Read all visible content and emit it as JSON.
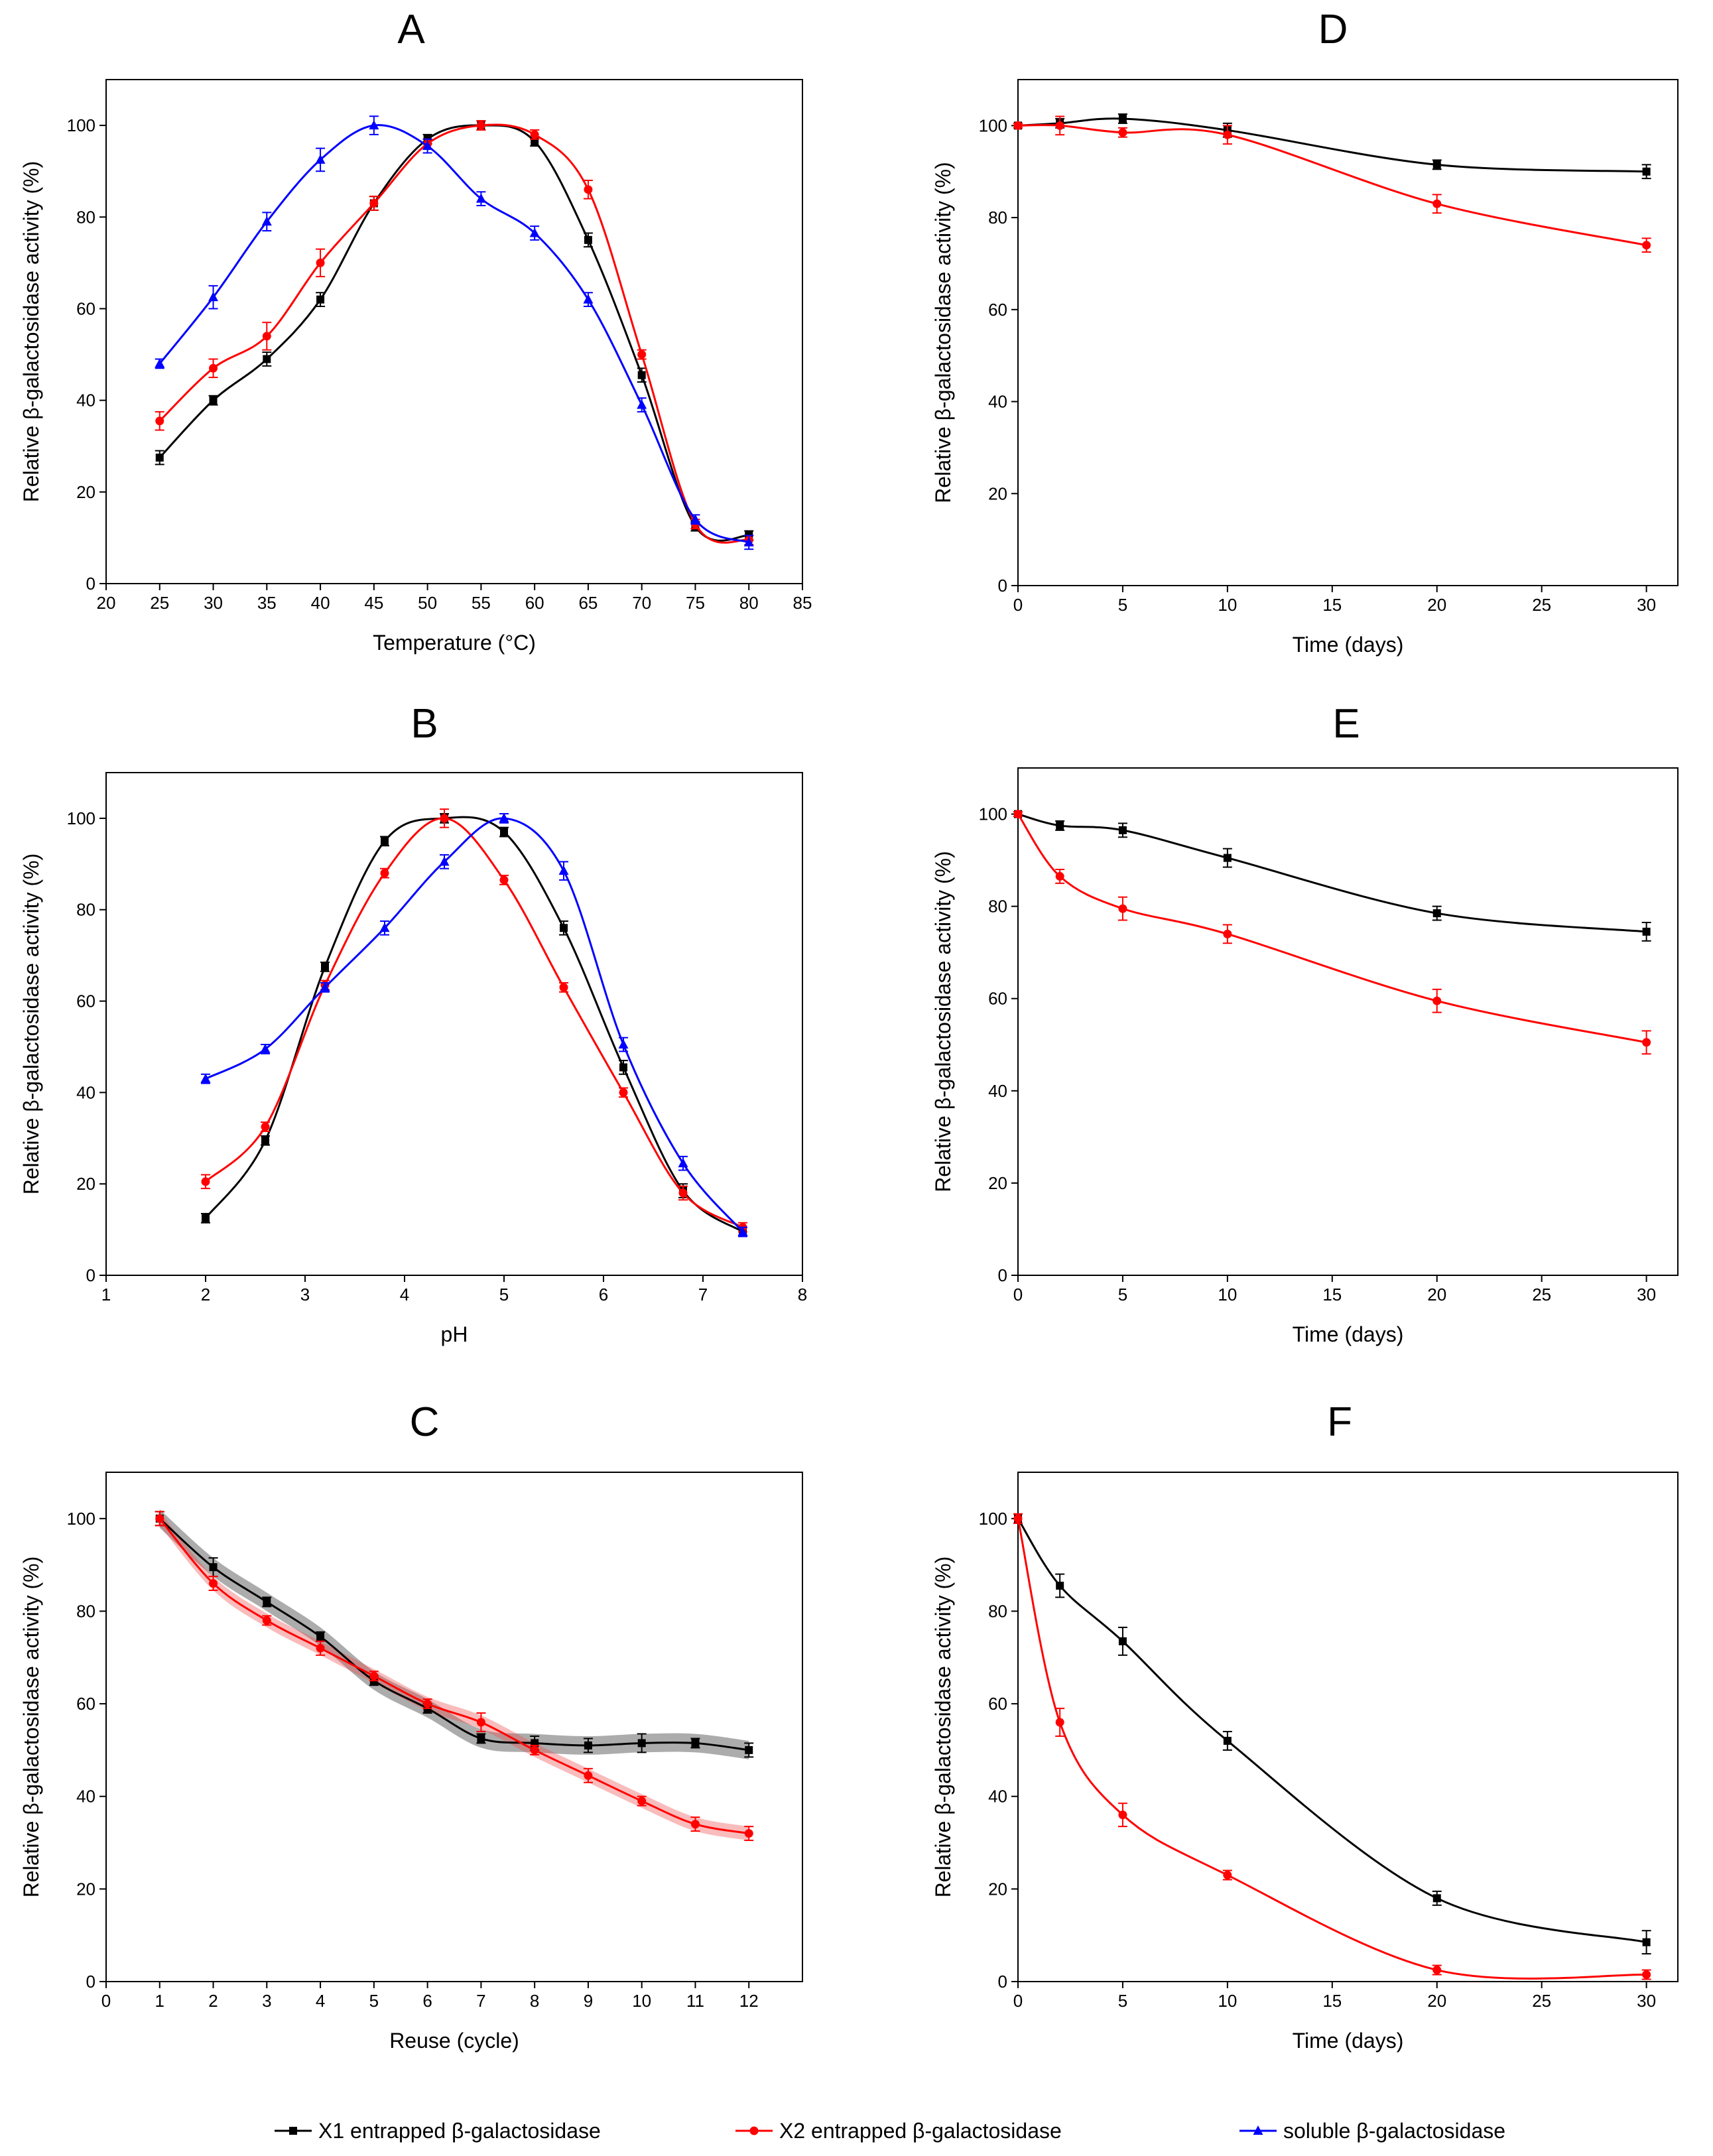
{
  "legend": [
    {
      "series": "x1",
      "label": "X1 entrapped β-galactosidase",
      "marker": "square",
      "color": "#000000"
    },
    {
      "series": "x2",
      "label": "X2 entrapped β-galactosidase",
      "marker": "circle",
      "color": "#ff0000"
    },
    {
      "series": "soluble",
      "label": "soluble β-galactosidase",
      "marker": "triangle",
      "color": "#0000ff"
    }
  ],
  "chart_data": [
    {
      "id": "A",
      "type": "line",
      "title": "A",
      "xlabel": "Temperature (°C)",
      "ylabel": "Relative β-galactosidase activity (%)",
      "xlim": [
        20,
        85
      ],
      "ylim": [
        0,
        110
      ],
      "xticks": [
        20,
        25,
        30,
        35,
        40,
        45,
        50,
        55,
        60,
        65,
        70,
        75,
        80,
        85
      ],
      "yticks": [
        0,
        20,
        40,
        60,
        80,
        100
      ],
      "series": [
        {
          "key": "x1",
          "name": "X1 entrapped β-galactosidase",
          "x": [
            25,
            30,
            35,
            40,
            45,
            50,
            55,
            60,
            65,
            70,
            75,
            80
          ],
          "y": [
            27.5,
            40,
            49,
            62,
            83,
            97,
            100,
            96.5,
            75,
            45.5,
            12.5,
            10.5
          ],
          "err": [
            1.5,
            1,
            1.5,
            1.5,
            1.5,
            1,
            1,
            1,
            1.5,
            1.5,
            1,
            1
          ]
        },
        {
          "key": "x2",
          "name": "X2 entrapped β-galactosidase",
          "x": [
            25,
            30,
            35,
            40,
            45,
            50,
            55,
            60,
            65,
            70,
            75,
            80
          ],
          "y": [
            35.5,
            47,
            54,
            70,
            83,
            96,
            100,
            98,
            86,
            50,
            13,
            9.5
          ],
          "err": [
            2,
            2,
            3,
            3,
            1.5,
            1,
            1,
            1,
            2,
            1,
            1,
            1
          ]
        },
        {
          "key": "soluble",
          "name": "soluble β-galactosidase",
          "x": [
            25,
            30,
            35,
            40,
            45,
            50,
            55,
            60,
            65,
            70,
            75,
            80
          ],
          "y": [
            48,
            62.5,
            79,
            92.5,
            100,
            95.5,
            84,
            76.5,
            62,
            39,
            14,
            9
          ],
          "err": [
            1,
            2.5,
            2,
            2.5,
            2,
            1.5,
            1.5,
            1.5,
            1.5,
            1.5,
            1,
            1.5
          ]
        }
      ]
    },
    {
      "id": "B",
      "type": "line",
      "title": "B",
      "xlabel": "pH",
      "ylabel": "Relative β-galactosidase activity (%)",
      "xlim": [
        1,
        8
      ],
      "ylim": [
        0,
        110
      ],
      "xticks": [
        1,
        2,
        3,
        4,
        5,
        6,
        7,
        8
      ],
      "yticks": [
        0,
        20,
        40,
        60,
        80,
        100
      ],
      "series": [
        {
          "key": "x1",
          "name": "X1 entrapped β-galactosidase",
          "x": [
            2,
            2.6,
            3.2,
            3.8,
            4.4,
            5.0,
            5.6,
            6.2,
            6.8,
            7.4
          ],
          "y": [
            12.5,
            29.5,
            67.5,
            95,
            100,
            97,
            76,
            45.5,
            18.5,
            9.5
          ],
          "err": [
            1,
            1,
            1,
            1,
            1,
            1,
            1.5,
            1.5,
            1.5,
            1
          ]
        },
        {
          "key": "x2",
          "name": "X2 entrapped β-galactosidase",
          "x": [
            2,
            2.6,
            3.2,
            3.8,
            4.4,
            5.0,
            5.6,
            6.2,
            6.8,
            7.4
          ],
          "y": [
            20.5,
            32.5,
            63.5,
            88,
            100,
            86.5,
            63,
            40,
            18,
            10.5
          ],
          "err": [
            1.5,
            1,
            1,
            1,
            2,
            1,
            1,
            1,
            1.5,
            1
          ]
        },
        {
          "key": "soluble",
          "name": "soluble β-galactosidase",
          "x": [
            2,
            2.6,
            3.2,
            3.8,
            4.4,
            5.0,
            5.6,
            6.2,
            6.8,
            7.4
          ],
          "y": [
            43,
            49.5,
            63,
            76,
            90.5,
            100,
            88.5,
            50.5,
            24.5,
            9.5
          ],
          "err": [
            1,
            1,
            1,
            1.5,
            1.5,
            1,
            2,
            1.5,
            1.5,
            1
          ]
        }
      ]
    },
    {
      "id": "C",
      "type": "line",
      "title": "C",
      "xlabel": "Reuse (cycle)",
      "ylabel": "Relative β-galactosidase activity (%)",
      "xlim": [
        0,
        13
      ],
      "ylim": [
        0,
        110
      ],
      "xticks": [
        0,
        1,
        2,
        3,
        4,
        5,
        6,
        7,
        8,
        9,
        10,
        11,
        12
      ],
      "yticks": [
        0,
        20,
        40,
        60,
        80,
        100
      ],
      "series": [
        {
          "key": "x1",
          "name": "X1 entrapped β-galactosidase",
          "x": [
            1,
            2,
            3,
            4,
            5,
            6,
            7,
            8,
            9,
            10,
            11,
            12
          ],
          "y": [
            100,
            89.5,
            82,
            74.5,
            65,
            59,
            52.5,
            51.5,
            51,
            51.5,
            51.5,
            50
          ],
          "err": [
            1.5,
            2,
            1,
            1,
            1,
            1,
            1,
            1.5,
            1.5,
            2,
            1,
            1.5
          ],
          "band": 2
        },
        {
          "key": "x2",
          "name": "X2 entrapped β-galactosidase",
          "x": [
            1,
            2,
            3,
            4,
            5,
            6,
            7,
            8,
            9,
            10,
            11,
            12
          ],
          "y": [
            100,
            86,
            78,
            72,
            66,
            60,
            56,
            50,
            44.5,
            39,
            34,
            32
          ],
          "err": [
            1.5,
            1.5,
            1,
            1.5,
            1,
            1,
            2,
            1,
            1.5,
            1,
            1.5,
            1.5
          ],
          "band": 1.5
        }
      ]
    },
    {
      "id": "D",
      "type": "line",
      "title": "D",
      "xlabel": "Time (days)",
      "ylabel": "Relative β-galactosidase activity (%)",
      "xlim": [
        0,
        31.5
      ],
      "ylim": [
        0,
        110
      ],
      "xticks": [
        0,
        5,
        10,
        15,
        20,
        25,
        30
      ],
      "yticks": [
        0,
        20,
        40,
        60,
        80,
        100
      ],
      "series": [
        {
          "key": "x1",
          "name": "X1 entrapped β-galactosidase",
          "x": [
            0,
            2,
            5,
            10,
            20,
            30
          ],
          "y": [
            100,
            100.5,
            101.5,
            99,
            91.5,
            90
          ],
          "err": [
            0.5,
            1,
            1,
            1.5,
            1,
            1.5
          ]
        },
        {
          "key": "x2",
          "name": "X2 entrapped β-galactosidase",
          "x": [
            0,
            2,
            5,
            10,
            20,
            30
          ],
          "y": [
            100,
            100,
            98.5,
            98,
            83,
            74
          ],
          "err": [
            0.5,
            2,
            1,
            2,
            2,
            1.5
          ]
        }
      ]
    },
    {
      "id": "E",
      "type": "line",
      "title": "E",
      "xlabel": "Time (days)",
      "ylabel": "Relative β-galactosidase activity (%)",
      "xlim": [
        0,
        31.5
      ],
      "ylim": [
        0,
        110
      ],
      "xticks": [
        0,
        5,
        10,
        15,
        20,
        25,
        30
      ],
      "yticks": [
        0,
        20,
        40,
        60,
        80,
        100
      ],
      "series": [
        {
          "key": "x1",
          "name": "X1 entrapped β-galactosidase",
          "x": [
            0,
            2,
            5,
            10,
            20,
            30
          ],
          "y": [
            100,
            97.5,
            96.5,
            90.5,
            78.5,
            74.5
          ],
          "err": [
            0.5,
            1,
            1.5,
            2,
            1.5,
            2
          ]
        },
        {
          "key": "x2",
          "name": "X2 entrapped β-galactosidase",
          "x": [
            0,
            2,
            5,
            10,
            20,
            30
          ],
          "y": [
            100,
            86.5,
            79.5,
            74,
            59.5,
            50.5
          ],
          "err": [
            0.5,
            1.5,
            2.5,
            2,
            2.5,
            2.5
          ]
        }
      ]
    },
    {
      "id": "F",
      "type": "line",
      "title": "F",
      "xlabel": "Time (days)",
      "ylabel": "Relative β-galactosidase activity (%)",
      "xlim": [
        0,
        31.5
      ],
      "ylim": [
        0,
        110
      ],
      "xticks": [
        0,
        5,
        10,
        15,
        20,
        25,
        30
      ],
      "yticks": [
        0,
        20,
        40,
        60,
        80,
        100
      ],
      "series": [
        {
          "key": "x1",
          "name": "X1 entrapped β-galactosidase",
          "x": [
            0,
            2,
            5,
            10,
            20,
            30
          ],
          "y": [
            100,
            85.5,
            73.5,
            52,
            18,
            8.5
          ],
          "err": [
            1,
            2.5,
            3,
            2,
            1.5,
            2.5
          ]
        },
        {
          "key": "x2",
          "name": "X2 entrapped β-galactosidase",
          "x": [
            0,
            2,
            5,
            10,
            20,
            30
          ],
          "y": [
            100,
            56,
            36,
            23,
            2.5,
            1.5
          ],
          "err": [
            1,
            3,
            2.5,
            1,
            1,
            1
          ]
        }
      ]
    }
  ]
}
